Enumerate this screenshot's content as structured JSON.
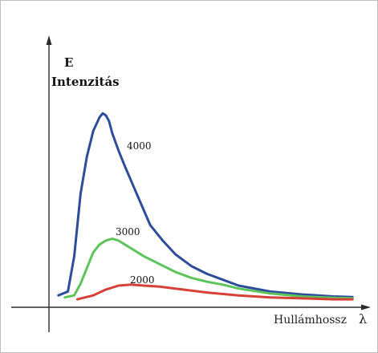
{
  "chart_data": {
    "type": "line",
    "ylabel_symbol": "E",
    "ylabel": "Intenzitás",
    "xlabel": "Hullámhossz",
    "xlabel_symbol": "λ",
    "xlim": [
      0,
      100
    ],
    "ylim": [
      0,
      100
    ],
    "grid": false,
    "series": [
      {
        "name": "4000",
        "color": "#2d4c9c",
        "x": [
          3,
          6,
          8,
          10,
          12,
          14,
          16,
          17,
          18,
          19,
          20,
          22,
          24,
          28,
          32,
          36,
          40,
          45,
          50,
          55,
          60,
          70,
          80,
          90,
          96
        ],
        "y": [
          4,
          6,
          24,
          56,
          75,
          88,
          95,
          97,
          96,
          93,
          87,
          78,
          70,
          55,
          40,
          32,
          25,
          19,
          15,
          12,
          9,
          6,
          4.5,
          3.5,
          3.2
        ]
      },
      {
        "name": "3000",
        "color": "#5ec45a",
        "x": [
          5,
          8,
          10,
          12,
          14,
          16,
          18,
          20,
          22,
          25,
          30,
          35,
          40,
          45,
          50,
          55,
          60,
          70,
          80,
          90,
          96
        ],
        "y": [
          3,
          4,
          10,
          18,
          26,
          30,
          32,
          33,
          32,
          29,
          24,
          20,
          16,
          13,
          11,
          9.5,
          7.5,
          5,
          3.5,
          2.8,
          2.6
        ]
      },
      {
        "name": "2000",
        "color": "#d64036",
        "x": [
          9,
          14,
          18,
          22,
          26,
          30,
          35,
          40,
          50,
          60,
          70,
          80,
          90,
          96
        ],
        "y": [
          2,
          4,
          7,
          9,
          9.5,
          9,
          8.5,
          7.5,
          5.5,
          4,
          3,
          2.5,
          2,
          2
        ]
      }
    ]
  }
}
